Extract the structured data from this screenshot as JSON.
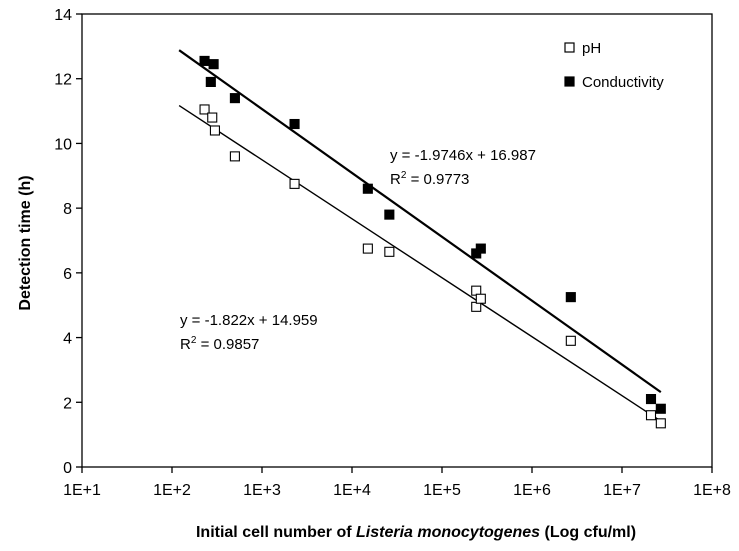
{
  "chart_data": {
    "type": "scatter",
    "x_scale": "log10",
    "xlim": [
      10,
      100000000
    ],
    "ylim": [
      0,
      14
    ],
    "x_ticks": [
      {
        "value": 10,
        "label": "1E+1"
      },
      {
        "value": 100,
        "label": "1E+2"
      },
      {
        "value": 1000,
        "label": "1E+3"
      },
      {
        "value": 10000,
        "label": "1E+4"
      },
      {
        "value": 100000,
        "label": "1E+5"
      },
      {
        "value": 1000000,
        "label": "1E+6"
      },
      {
        "value": 10000000,
        "label": "1E+7"
      },
      {
        "value": 100000000,
        "label": "1E+8"
      }
    ],
    "y_ticks": [
      {
        "value": 0,
        "label": "0"
      },
      {
        "value": 2,
        "label": "2"
      },
      {
        "value": 4,
        "label": "4"
      },
      {
        "value": 6,
        "label": "6"
      },
      {
        "value": 8,
        "label": "8"
      },
      {
        "value": 10,
        "label": "10"
      },
      {
        "value": 12,
        "label": "12"
      },
      {
        "value": 14,
        "label": "14"
      }
    ],
    "ylabel": "Detection time (h)",
    "xlabel_parts": [
      "Initial cell number of ",
      "Listeria monocytogenes",
      " (Log cfu/ml)"
    ],
    "grid": false,
    "legend_position": "top-right",
    "series": [
      {
        "name": "pH",
        "marker": "open-square",
        "points": [
          {
            "x": 230,
            "y": 11.05
          },
          {
            "x": 280,
            "y": 10.8
          },
          {
            "x": 300,
            "y": 10.4
          },
          {
            "x": 500,
            "y": 9.6
          },
          {
            "x": 2300,
            "y": 8.75
          },
          {
            "x": 15000,
            "y": 6.75
          },
          {
            "x": 26000,
            "y": 6.65
          },
          {
            "x": 240000,
            "y": 5.45
          },
          {
            "x": 240000,
            "y": 4.95
          },
          {
            "x": 270000,
            "y": 5.2
          },
          {
            "x": 2700000,
            "y": 3.9
          },
          {
            "x": 21000000,
            "y": 1.6
          },
          {
            "x": 27000000,
            "y": 1.35
          }
        ],
        "fit": {
          "slope": -1.822,
          "intercept": 14.959,
          "x_range": [
            120,
            27000000
          ]
        },
        "equation": "y = -1.822x + 14.959",
        "r2_label": "R",
        "r2_value": " = 0.9857"
      },
      {
        "name": "Conductivity",
        "marker": "filled-square",
        "points": [
          {
            "x": 230,
            "y": 12.55
          },
          {
            "x": 270,
            "y": 11.9
          },
          {
            "x": 290,
            "y": 12.45
          },
          {
            "x": 500,
            "y": 11.4
          },
          {
            "x": 2300,
            "y": 10.6
          },
          {
            "x": 15000,
            "y": 8.6
          },
          {
            "x": 26000,
            "y": 7.8
          },
          {
            "x": 240000,
            "y": 6.6
          },
          {
            "x": 270000,
            "y": 6.75
          },
          {
            "x": 2700000,
            "y": 5.25
          },
          {
            "x": 21000000,
            "y": 2.1
          },
          {
            "x": 27000000,
            "y": 1.8
          }
        ],
        "fit": {
          "slope": -1.9746,
          "intercept": 16.987,
          "x_range": [
            120,
            27000000
          ]
        },
        "equation": "y = -1.9746x + 16.987",
        "r2_label": "R",
        "r2_value": " = 0.9773"
      }
    ]
  }
}
